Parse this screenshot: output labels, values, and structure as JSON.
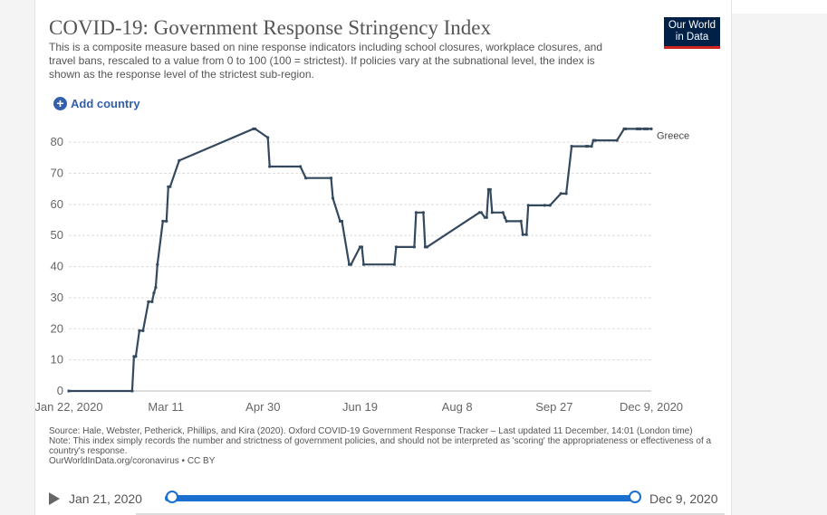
{
  "header": {
    "title": "COVID-19: Government Response Stringency Index",
    "subtitle": "This is a composite measure based on nine response indicators including school closures, workplace closures, and travel bans, rescaled to a value from 0 to 100 (100 = strictest). If policies vary at the subnational level, the index is shown as the response level of the strictest sub-region.",
    "logo_line1": "Our World",
    "logo_line2": "in Data"
  },
  "controls": {
    "add_country_label": "Add country"
  },
  "colors": {
    "line": "#34495e",
    "accent": "#3360a9",
    "slider": "#1a6fd1",
    "logo_bg": "#002147",
    "logo_stripe": "#ce261e"
  },
  "chart_data": {
    "type": "line",
    "x_ticks": [
      "Jan 22, 2020",
      "Mar 11",
      "Apr 30",
      "Jun 19",
      "Aug 8",
      "Sep 27",
      "Dec 9, 2020"
    ],
    "y_ticks": [
      0,
      10,
      20,
      30,
      40,
      50,
      60,
      70,
      80
    ],
    "ylim": [
      0,
      85
    ],
    "xlim": [
      "2020-01-22",
      "2020-12-09"
    ],
    "grid": true,
    "series": [
      {
        "name": "Greece",
        "x": [
          "2020-01-22",
          "2020-02-26",
          "2020-02-27",
          "2020-02-28",
          "2020-03-01",
          "2020-03-03",
          "2020-03-06",
          "2020-03-08",
          "2020-03-09",
          "2020-03-10",
          "2020-03-11",
          "2020-03-14",
          "2020-03-16",
          "2020-03-17",
          "2020-03-18",
          "2020-03-23",
          "2020-05-03",
          "2020-05-04",
          "2020-05-11",
          "2020-05-12",
          "2020-05-29",
          "2020-06-01",
          "2020-06-15",
          "2020-06-16",
          "2020-06-20",
          "2020-06-21",
          "2020-06-25",
          "2020-06-26",
          "2020-07-01",
          "2020-07-02",
          "2020-07-03",
          "2020-07-20",
          "2020-07-21",
          "2020-07-31",
          "2020-08-01",
          "2020-08-05",
          "2020-08-06",
          "2020-08-07",
          "2020-09-05",
          "2020-09-06",
          "2020-09-08",
          "2020-09-09",
          "2020-09-10",
          "2020-09-11",
          "2020-09-12",
          "2020-09-18",
          "2020-09-19",
          "2020-09-20",
          "2020-09-28",
          "2020-09-29",
          "2020-10-01",
          "2020-10-02",
          "2020-10-11",
          "2020-10-14",
          "2020-10-20",
          "2020-10-23",
          "2020-10-26",
          "2020-11-03",
          "2020-11-04",
          "2020-11-06",
          "2020-11-07",
          "2020-11-08",
          "2020-11-20",
          "2020-11-24",
          "2020-11-25",
          "2020-12-01",
          "2020-12-02",
          "2020-12-03",
          "2020-12-05",
          "2020-12-06",
          "2020-12-07",
          "2020-12-09"
        ],
        "y": [
          0,
          0,
          11.1,
          11.1,
          19.4,
          19.4,
          28.7,
          28.7,
          31.5,
          33.3,
          40.7,
          54.6,
          54.6,
          65.7,
          65.7,
          74.1,
          84.3,
          84.3,
          81.5,
          72.2,
          72.2,
          68.5,
          68.5,
          62,
          54.6,
          54.6,
          40.7,
          40.7,
          46.3,
          46.3,
          40.7,
          40.7,
          46.3,
          46.3,
          57.4,
          57.4,
          46.3,
          46.3,
          57.4,
          57.4,
          55.8,
          55.8,
          64.8,
          64.8,
          57.4,
          57.4,
          55.8,
          54.6,
          54.6,
          50.3,
          50.3,
          59.7,
          59.7,
          59.7,
          63.5,
          63.5,
          78.7,
          78.7,
          78.7,
          78.7,
          80.6,
          80.6,
          80.6,
          84.3,
          84.3,
          84.3,
          84.3,
          84.3,
          84.3,
          84.3,
          84.3,
          84.3
        ]
      }
    ]
  },
  "footer": {
    "source": "Source: Hale, Webster, Petherick, Phillips, and Kira (2020). Oxford COVID-19 Government Response Tracker – Last updated 11 December, 14:01 (London time)",
    "note": "Note: This index simply records the number and strictness of government policies, and should not be interpreted as 'scoring' the appropriateness or effectiveness of a country's response.",
    "license": "OurWorldInData.org/coronavirus • CC BY"
  },
  "timeline": {
    "start_label": "Jan 21, 2020",
    "end_label": "Dec 9, 2020"
  }
}
